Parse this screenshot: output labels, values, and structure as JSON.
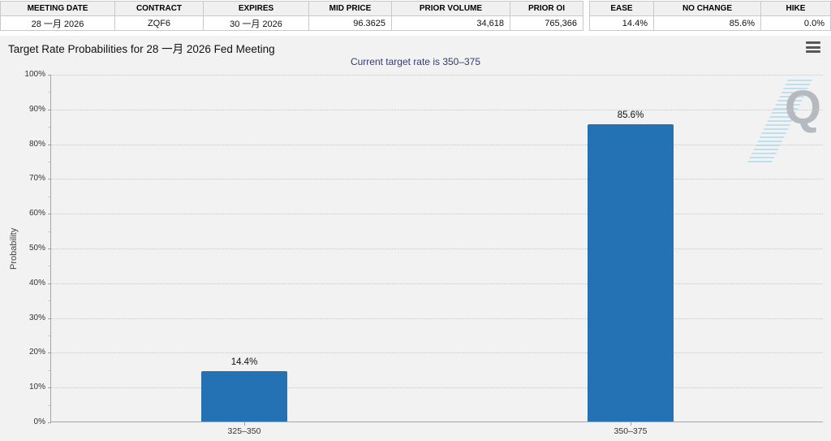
{
  "contract_table": {
    "headers": [
      "MEETING DATE",
      "CONTRACT",
      "EXPIRES",
      "MID PRICE",
      "PRIOR VOLUME",
      "PRIOR OI"
    ],
    "row": [
      "28 一月 2026",
      "ZQF6",
      "30 一月 2026",
      "96.3625",
      "34,618",
      "765,366"
    ]
  },
  "action_table": {
    "headers": [
      "EASE",
      "NO CHANGE",
      "HIKE"
    ],
    "row": [
      "14.4%",
      "85.6%",
      "0.0%"
    ]
  },
  "chart": {
    "title": "Target Rate Probabilities for 28 一月 2026 Fed Meeting",
    "subtitle": "Current target rate is 350–375",
    "subtitle_color": "#363a6e",
    "menu_icon": "hamburger-menu-icon",
    "watermark_letter": "Q"
  },
  "chart_data": {
    "type": "bar",
    "categories": [
      "325–350",
      "350–375"
    ],
    "values": [
      14.4,
      85.6
    ],
    "value_labels": [
      "14.4%",
      "85.6%"
    ],
    "title": "Target Rate Probabilities for 28 一月 2026 Fed Meeting",
    "xlabel": "",
    "ylabel": "Probability",
    "ylim": [
      0,
      100
    ],
    "ytick_step": 10,
    "ytick_suffix": "%",
    "grid": "horizontal-dotted",
    "legend": "none",
    "bar_color": "#2471b3"
  }
}
